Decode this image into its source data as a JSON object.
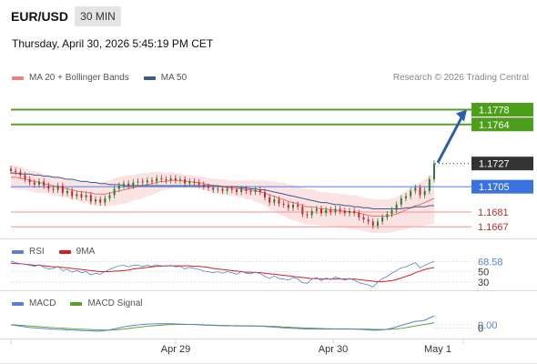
{
  "header": {
    "symbol": "EUR/USD",
    "timeframe": "30 MIN",
    "datetime": "Thursday, April 30, 2026 5:45:19 PM CET"
  },
  "legend": {
    "ma20": {
      "label": "MA 20 + Bollinger Bands",
      "color": "#f08080"
    },
    "ma50": {
      "label": "MA 50",
      "color": "#3c5a8c"
    }
  },
  "credit": "Research © 2026 Trading Central",
  "colors": {
    "up": "#2e7d32",
    "down": "#c62828",
    "support_line": "#f4a6a6",
    "current_line": "#5a8ee8",
    "resistance_line": "#5a9e2a",
    "arrow": "#2d5fa8",
    "rsi": "#5b7fd6",
    "rsi_ma": "#d22020",
    "macd": "#5b7fd6",
    "macd_signal": "#5a9e2a"
  },
  "chart_data": [
    {
      "type": "line",
      "panel": "price",
      "x_ticks": [
        "Apr 29",
        "Apr 30",
        "May 1"
      ],
      "price_levels": [
        {
          "label": "1.1778",
          "value": 1.1778,
          "kind": "resistance"
        },
        {
          "label": "1.1764",
          "value": 1.1764,
          "kind": "resistance"
        },
        {
          "label": "1.1727",
          "value": 1.1727,
          "kind": "last"
        },
        {
          "label": "1.1705",
          "value": 1.1705,
          "kind": "pivot"
        },
        {
          "label": "1.1681",
          "value": 1.1681,
          "kind": "support"
        },
        {
          "label": "1.1667",
          "value": 1.1667,
          "kind": "support"
        }
      ],
      "ylim": [
        1.1656,
        1.18
      ],
      "closes": [
        1.172,
        1.1719,
        1.1716,
        1.1712,
        1.1709,
        1.1707,
        1.171,
        1.1706,
        1.1703,
        1.1702,
        1.1706,
        1.1699,
        1.1701,
        1.1696,
        1.1698,
        1.1695,
        1.1697,
        1.1691,
        1.1693,
        1.169,
        1.1694,
        1.1697,
        1.1703,
        1.1706,
        1.1708,
        1.1706,
        1.1709,
        1.171,
        1.1709,
        1.1711,
        1.171,
        1.1713,
        1.1712,
        1.1711,
        1.1713,
        1.1711,
        1.1712,
        1.1708,
        1.171,
        1.1709,
        1.1707,
        1.1705,
        1.1704,
        1.1702,
        1.1703,
        1.1701,
        1.1703,
        1.1702,
        1.17,
        1.1703,
        1.1701,
        1.17,
        1.1702,
        1.17,
        1.1695,
        1.169,
        1.1693,
        1.1689,
        1.1688,
        1.1685,
        1.1688,
        1.1686,
        1.1679,
        1.1678,
        1.1682,
        1.1684,
        1.168,
        1.1683,
        1.1681,
        1.1684,
        1.1682,
        1.168,
        1.1682,
        1.168,
        1.1676,
        1.1674,
        1.1672,
        1.1668,
        1.1672,
        1.1676,
        1.1679,
        1.1683,
        1.1688,
        1.1694,
        1.1696,
        1.1701,
        1.1704,
        1.1697,
        1.1701,
        1.1712,
        1.1727
      ],
      "ma20": [
        1.1714,
        1.1714,
        1.1713,
        1.1712,
        1.1711,
        1.171,
        1.1709,
        1.1708,
        1.1707,
        1.1706,
        1.1705,
        1.1704,
        1.1703,
        1.1702,
        1.1701,
        1.17,
        1.17,
        1.1699,
        1.1698,
        1.1698,
        1.1698,
        1.1699,
        1.17,
        1.1701,
        1.1702,
        1.1703,
        1.1704,
        1.1705,
        1.1706,
        1.1707,
        1.1708,
        1.1709,
        1.171,
        1.171,
        1.1711,
        1.1711,
        1.1711,
        1.171,
        1.171,
        1.1709,
        1.1709,
        1.1708,
        1.1707,
        1.1706,
        1.1705,
        1.1705,
        1.1704,
        1.1704,
        1.1703,
        1.1703,
        1.1702,
        1.1702,
        1.1701,
        1.17,
        1.1699,
        1.1697,
        1.1696,
        1.1694,
        1.1693,
        1.1691,
        1.169,
        1.1689,
        1.1687,
        1.1686,
        1.1686,
        1.1685,
        1.1684,
        1.1684,
        1.1683,
        1.1683,
        1.1682,
        1.1682,
        1.1681,
        1.1681,
        1.168,
        1.1679,
        1.1678,
        1.1677,
        1.1677,
        1.1677,
        1.1677,
        1.1678,
        1.1679,
        1.1681,
        1.1683,
        1.1685,
        1.1687,
        1.1688,
        1.169,
        1.1692,
        1.1694
      ],
      "ma50": [
        1.1718,
        1.1718,
        1.1717,
        1.1717,
        1.1717,
        1.1716,
        1.1716,
        1.1715,
        1.1715,
        1.1714,
        1.1714,
        1.1713,
        1.1712,
        1.1712,
        1.1711,
        1.171,
        1.171,
        1.1709,
        1.1709,
        1.1708,
        1.1708,
        1.1707,
        1.1707,
        1.1707,
        1.1706,
        1.1706,
        1.1706,
        1.1706,
        1.1706,
        1.1706,
        1.1706,
        1.1706,
        1.1706,
        1.1706,
        1.1706,
        1.1706,
        1.1706,
        1.1706,
        1.1706,
        1.1706,
        1.1706,
        1.1706,
        1.1706,
        1.1706,
        1.1706,
        1.1705,
        1.1705,
        1.1705,
        1.1705,
        1.1704,
        1.1704,
        1.1703,
        1.1703,
        1.1702,
        1.1702,
        1.1701,
        1.17,
        1.1699,
        1.1698,
        1.1697,
        1.1696,
        1.1695,
        1.1694,
        1.1693,
        1.1692,
        1.1691,
        1.169,
        1.169,
        1.1689,
        1.1688,
        1.1688,
        1.1687,
        1.1687,
        1.1686,
        1.1686,
        1.1685,
        1.1685,
        1.1684,
        1.1684,
        1.1684,
        1.1684,
        1.1684,
        1.1684,
        1.1684,
        1.1685,
        1.1685,
        1.1686,
        1.1686,
        1.1686,
        1.1687,
        1.1687
      ],
      "band_width": [
        0.0011,
        0.0011,
        0.0011,
        0.001,
        0.001,
        0.001,
        0.001,
        0.0009,
        0.0009,
        0.0009,
        0.0009,
        0.0009,
        0.0009,
        0.0009,
        0.0009,
        0.001,
        0.001,
        0.001,
        0.0011,
        0.0011,
        0.0012,
        0.0012,
        0.0013,
        0.0013,
        0.0013,
        0.0013,
        0.0012,
        0.0012,
        0.0012,
        0.0011,
        0.0011,
        0.001,
        0.0009,
        0.0008,
        0.0008,
        0.0007,
        0.0007,
        0.0006,
        0.0006,
        0.0006,
        0.0006,
        0.0006,
        0.0006,
        0.0007,
        0.0007,
        0.0007,
        0.0007,
        0.0007,
        0.0008,
        0.0008,
        0.0009,
        0.0009,
        0.001,
        0.0011,
        0.0012,
        0.0013,
        0.0014,
        0.0015,
        0.0016,
        0.0016,
        0.0017,
        0.0017,
        0.0017,
        0.0017,
        0.0017,
        0.0016,
        0.0016,
        0.0016,
        0.0016,
        0.0016,
        0.0016,
        0.0016,
        0.0016,
        0.0016,
        0.0016,
        0.0016,
        0.0016,
        0.0016,
        0.0016,
        0.0016,
        0.0016,
        0.0016,
        0.0016,
        0.0017,
        0.0018,
        0.0019,
        0.002,
        0.0021,
        0.0022,
        0.0023,
        0.0024
      ]
    },
    {
      "type": "line",
      "panel": "rsi",
      "legend": [
        "RSI",
        "9MA"
      ],
      "ylim": [
        20,
        80
      ],
      "levels": [
        {
          "label": "68.58",
          "value": 68.58
        },
        {
          "label": "50",
          "value": 50
        },
        {
          "label": "30",
          "value": 30
        }
      ],
      "rsi": [
        70,
        67,
        65,
        64,
        62,
        60,
        63,
        58,
        55,
        56,
        60,
        52,
        54,
        49,
        52,
        48,
        50,
        44,
        47,
        45,
        50,
        54,
        58,
        61,
        62,
        59,
        62,
        62,
        60,
        62,
        60,
        63,
        61,
        60,
        62,
        59,
        60,
        55,
        58,
        56,
        54,
        51,
        50,
        48,
        50,
        47,
        50,
        48,
        45,
        51,
        47,
        46,
        49,
        46,
        41,
        37,
        42,
        37,
        36,
        34,
        39,
        36,
        29,
        28,
        36,
        39,
        33,
        38,
        35,
        40,
        37,
        34,
        37,
        34,
        29,
        27,
        25,
        21,
        30,
        37,
        41,
        47,
        52,
        57,
        59,
        63,
        67,
        57,
        62,
        66,
        69
      ],
      "ma9": [
        66,
        65,
        65,
        64,
        63,
        62,
        62,
        61,
        60,
        59,
        59,
        58,
        57,
        56,
        55,
        54,
        53,
        52,
        51,
        50,
        50,
        50,
        51,
        51,
        52,
        53,
        55,
        56,
        57,
        58,
        59,
        60,
        60,
        61,
        61,
        61,
        61,
        61,
        61,
        60,
        60,
        59,
        58,
        56,
        55,
        54,
        53,
        52,
        51,
        50,
        49,
        49,
        48,
        48,
        47,
        46,
        45,
        44,
        43,
        42,
        41,
        40,
        39,
        38,
        37,
        37,
        36,
        36,
        36,
        36,
        36,
        36,
        36,
        36,
        35,
        34,
        33,
        32,
        31,
        31,
        32,
        33,
        35,
        38,
        41,
        44,
        48,
        51,
        54,
        56,
        58
      ]
    },
    {
      "type": "line",
      "panel": "macd",
      "legend": [
        "MACD",
        "MACD Signal"
      ],
      "ylim": [
        -0.0007,
        0.0009
      ],
      "levels": [
        {
          "label": "0.00",
          "value": 0.0
        },
        {
          "label": "0",
          "value": -0.0002
        }
      ],
      "macd": [
        0.0,
        -4e-05,
        -8e-05,
        -0.00012,
        -0.00016,
        -0.00018,
        -0.0002,
        -0.00022,
        -0.00024,
        -0.00026,
        -0.00027,
        -0.00028,
        -0.0003,
        -0.00031,
        -0.00032,
        -0.00034,
        -0.00035,
        -0.00036,
        -0.00037,
        -0.00037,
        -0.00035,
        -0.0003,
        -0.00024,
        -0.00018,
        -0.00012,
        -8e-05,
        -4e-05,
        -1e-05,
        2e-05,
        4e-05,
        5e-05,
        6e-05,
        6e-05,
        6e-05,
        6e-05,
        5e-05,
        4e-05,
        3e-05,
        2e-05,
        1e-05,
        0.0,
        -2e-05,
        -3e-05,
        -4e-05,
        -5e-05,
        -6e-05,
        -6e-05,
        -6e-05,
        -7e-05,
        -7e-05,
        -7e-05,
        -8e-05,
        -8e-05,
        -9e-05,
        -0.0001,
        -0.00012,
        -0.00014,
        -0.00016,
        -0.00018,
        -0.0002,
        -0.00021,
        -0.00022,
        -0.00024,
        -0.00025,
        -0.00025,
        -0.00025,
        -0.00025,
        -0.00025,
        -0.00025,
        -0.00025,
        -0.00025,
        -0.00025,
        -0.00025,
        -0.00026,
        -0.00027,
        -0.00028,
        -0.0003,
        -0.00032,
        -0.00032,
        -0.0003,
        -0.00026,
        -0.0002,
        -0.00012,
        -4e-05,
        4e-05,
        0.00012,
        0.0002,
        0.00022,
        0.00026,
        0.0004,
        0.00052
      ],
      "signal": [
        0.0,
        -1e-05,
        -3e-05,
        -5e-05,
        -7e-05,
        -9e-05,
        -0.00011,
        -0.00013,
        -0.00015,
        -0.00017,
        -0.00019,
        -0.0002,
        -0.00022,
        -0.00023,
        -0.00025,
        -0.00026,
        -0.00027,
        -0.00028,
        -0.0003,
        -0.00031,
        -0.00031,
        -0.00031,
        -0.0003,
        -0.00028,
        -0.00025,
        -0.00022,
        -0.00018,
        -0.00015,
        -0.00012,
        -9e-05,
        -6e-05,
        -4e-05,
        -2e-05,
        0.0,
        1e-05,
        2e-05,
        2e-05,
        2e-05,
        2e-05,
        2e-05,
        1e-05,
        0.0,
        -1e-05,
        -2e-05,
        -3e-05,
        -4e-05,
        -4e-05,
        -5e-05,
        -5e-05,
        -6e-05,
        -6e-05,
        -6e-05,
        -7e-05,
        -7e-05,
        -8e-05,
        -9e-05,
        -0.0001,
        -0.00011,
        -0.00013,
        -0.00014,
        -0.00016,
        -0.00017,
        -0.00018,
        -0.00019,
        -0.0002,
        -0.00021,
        -0.00022,
        -0.00023,
        -0.00023,
        -0.00024,
        -0.00024,
        -0.00024,
        -0.00024,
        -0.00025,
        -0.00025,
        -0.00025,
        -0.00026,
        -0.00027,
        -0.00027,
        -0.00028,
        -0.00027,
        -0.00026,
        -0.00024,
        -0.00021,
        -0.00017,
        -0.00012,
        -7e-05,
        -2e-05,
        2e-05,
        6e-05,
        0.00012
      ]
    }
  ]
}
